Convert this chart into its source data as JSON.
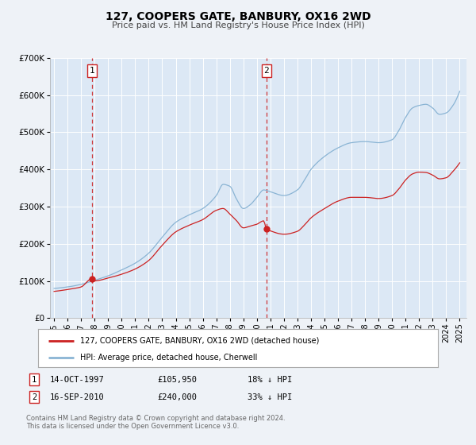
{
  "title": "127, COOPERS GATE, BANBURY, OX16 2WD",
  "subtitle": "Price paid vs. HM Land Registry's House Price Index (HPI)",
  "bg_color": "#eef2f7",
  "plot_bg_color": "#dce8f5",
  "grid_color": "#c8d8e8",
  "hpi_color": "#8ab4d4",
  "price_color": "#cc2222",
  "marker_color": "#cc2222",
  "sale1_date_num": 1997.79,
  "sale1_value": 105950,
  "sale2_date_num": 2010.71,
  "sale2_value": 240000,
  "xmin": 1994.7,
  "xmax": 2025.5,
  "ymin": 0,
  "ymax": 700000,
  "yticks": [
    0,
    100000,
    200000,
    300000,
    400000,
    500000,
    600000,
    700000
  ],
  "ytick_labels": [
    "£0",
    "£100K",
    "£200K",
    "£300K",
    "£400K",
    "£500K",
    "£600K",
    "£700K"
  ],
  "xticks": [
    1995,
    1996,
    1997,
    1998,
    1999,
    2000,
    2001,
    2002,
    2003,
    2004,
    2005,
    2006,
    2007,
    2008,
    2009,
    2010,
    2011,
    2012,
    2013,
    2014,
    2015,
    2016,
    2017,
    2018,
    2019,
    2020,
    2021,
    2022,
    2023,
    2024,
    2025
  ],
  "legend_label_price": "127, COOPERS GATE, BANBURY, OX16 2WD (detached house)",
  "legend_label_hpi": "HPI: Average price, detached house, Cherwell",
  "footer_text": "Contains HM Land Registry data © Crown copyright and database right 2024.\nThis data is licensed under the Open Government Licence v3.0."
}
